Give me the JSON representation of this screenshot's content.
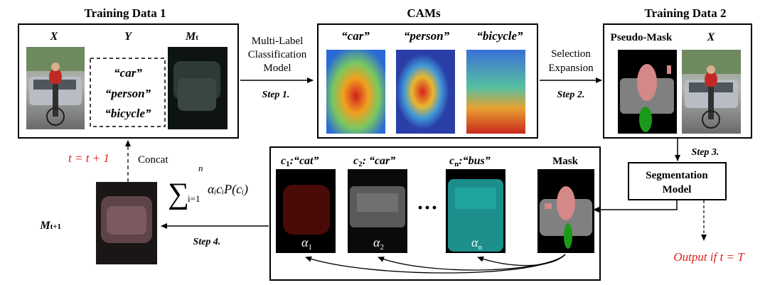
{
  "training_data_1": {
    "title": "Training Data 1",
    "col_x": "X",
    "col_y": "Y",
    "col_m": "M",
    "col_m_sub": "t",
    "labels": [
      "“car”",
      "“person”",
      "“bicycle”"
    ]
  },
  "step1": {
    "model_lines": [
      "Multi-Label",
      "Classification",
      "Model"
    ],
    "step": "Step 1."
  },
  "cams": {
    "title": "CAMs",
    "labels": [
      "“car”",
      "“person”",
      "“bicycle”"
    ]
  },
  "step2": {
    "lines": [
      "Selection",
      "Expansion"
    ],
    "step": "Step 2."
  },
  "training_data_2": {
    "title": "Training Data 2",
    "pseudo_mask": "Pseudo-Mask",
    "col_x": "X"
  },
  "step3": {
    "step": "Step 3."
  },
  "segmentation": {
    "lines": [
      "Segmentation",
      "Model"
    ]
  },
  "output": {
    "text": "Output if  t = T"
  },
  "classes": {
    "c1_sym": "c",
    "c1_sub": "1",
    "c1_label": ":“cat”",
    "c2_sym": "c",
    "c2_sub": "2",
    "c2_label": ": “car”",
    "cn_sym": "c",
    "cn_sub": "n",
    "cn_label": ":“bus”",
    "mask": "Mask",
    "dots": "···",
    "a1": "α",
    "a1_sub": "1",
    "a2": "α",
    "a2_sub": "2",
    "an": "α",
    "an_sub": "n"
  },
  "step4": {
    "step": "Step 4.",
    "sum_sym": "∑",
    "sum_upper": "n",
    "sum_lower": "i=1",
    "formula": "αᵢcᵢP(cᵢ)"
  },
  "m_next": {
    "sym": "M",
    "sub": "t+1"
  },
  "concat": "Concat",
  "update": "t = t + 1"
}
